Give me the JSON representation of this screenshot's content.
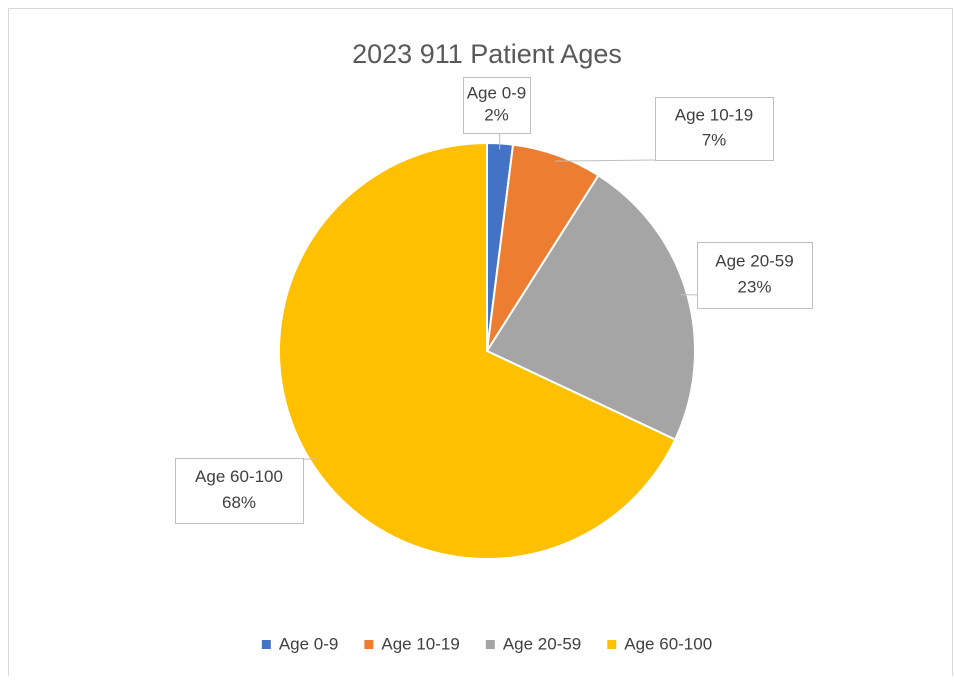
{
  "chart_data": {
    "type": "pie",
    "title": "2023 911 Patient Ages",
    "categories": [
      "Age 0-9",
      "Age 10-19",
      "Age 20-59",
      "Age 60-100"
    ],
    "values": [
      2,
      7,
      23,
      68
    ],
    "value_labels": [
      "2%",
      "7%",
      "23%",
      "68%"
    ],
    "colors": [
      "#4472c4",
      "#ed7d31",
      "#a5a5a5",
      "#ffc000"
    ],
    "legend": "bottom"
  }
}
